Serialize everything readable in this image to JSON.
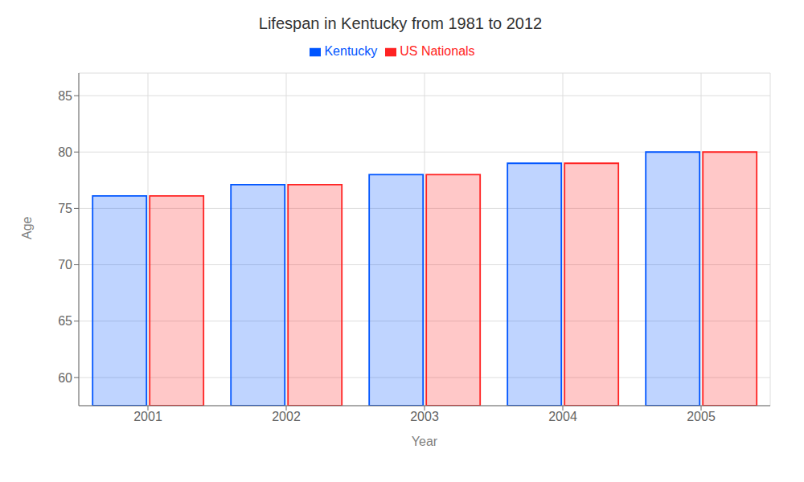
{
  "chart_data": {
    "type": "bar",
    "title": "Lifespan in Kentucky from 1981 to 2012",
    "xlabel": "Year",
    "ylabel": "Age",
    "categories": [
      "2001",
      "2002",
      "2003",
      "2004",
      "2005"
    ],
    "series": [
      {
        "name": "Kentucky",
        "color": "#0055ff",
        "values": [
          76.1,
          77.1,
          78.0,
          79.0,
          80.0
        ]
      },
      {
        "name": "US Nationals",
        "color": "#ff2222",
        "values": [
          76.1,
          77.1,
          78.0,
          79.0,
          80.0
        ]
      }
    ],
    "ylim": [
      57.5,
      87
    ],
    "yticks": [
      60,
      65,
      70,
      75,
      80,
      85
    ],
    "grid": true,
    "legend": "top"
  }
}
